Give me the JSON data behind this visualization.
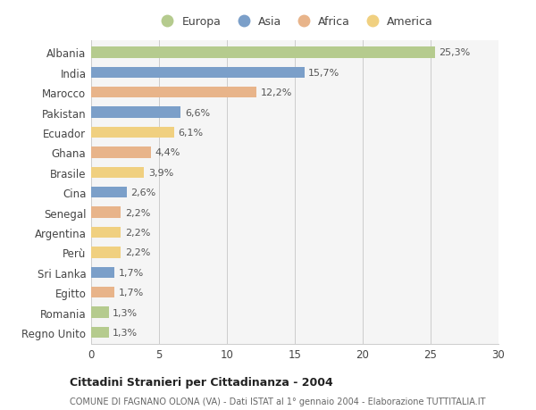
{
  "countries": [
    "Albania",
    "India",
    "Marocco",
    "Pakistan",
    "Ecuador",
    "Ghana",
    "Brasile",
    "Cina",
    "Senegal",
    "Argentina",
    "Perù",
    "Sri Lanka",
    "Egitto",
    "Romania",
    "Regno Unito"
  ],
  "values": [
    25.3,
    15.7,
    12.2,
    6.6,
    6.1,
    4.4,
    3.9,
    2.6,
    2.2,
    2.2,
    2.2,
    1.7,
    1.7,
    1.3,
    1.3
  ],
  "labels": [
    "25,3%",
    "15,7%",
    "12,2%",
    "6,6%",
    "6,1%",
    "4,4%",
    "3,9%",
    "2,6%",
    "2,2%",
    "2,2%",
    "2,2%",
    "1,7%",
    "1,7%",
    "1,3%",
    "1,3%"
  ],
  "continents": [
    "Europa",
    "Asia",
    "Africa",
    "Asia",
    "America",
    "Africa",
    "America",
    "Asia",
    "Africa",
    "America",
    "America",
    "Asia",
    "Africa",
    "Europa",
    "Europa"
  ],
  "colors": {
    "Europa": "#b5cb8e",
    "Asia": "#7b9fc9",
    "Africa": "#e8b48a",
    "America": "#f0d080"
  },
  "title": "Cittadini Stranieri per Cittadinanza - 2004",
  "subtitle": "COMUNE DI FAGNANO OLONA (VA) - Dati ISTAT al 1° gennaio 2004 - Elaborazione TUTTITALIA.IT",
  "xlim": [
    0,
    30
  ],
  "xticks": [
    0,
    5,
    10,
    15,
    20,
    25,
    30
  ],
  "background_color": "#ffffff",
  "bar_background": "#f5f5f5",
  "legend_order": [
    "Europa",
    "Asia",
    "Africa",
    "America"
  ]
}
